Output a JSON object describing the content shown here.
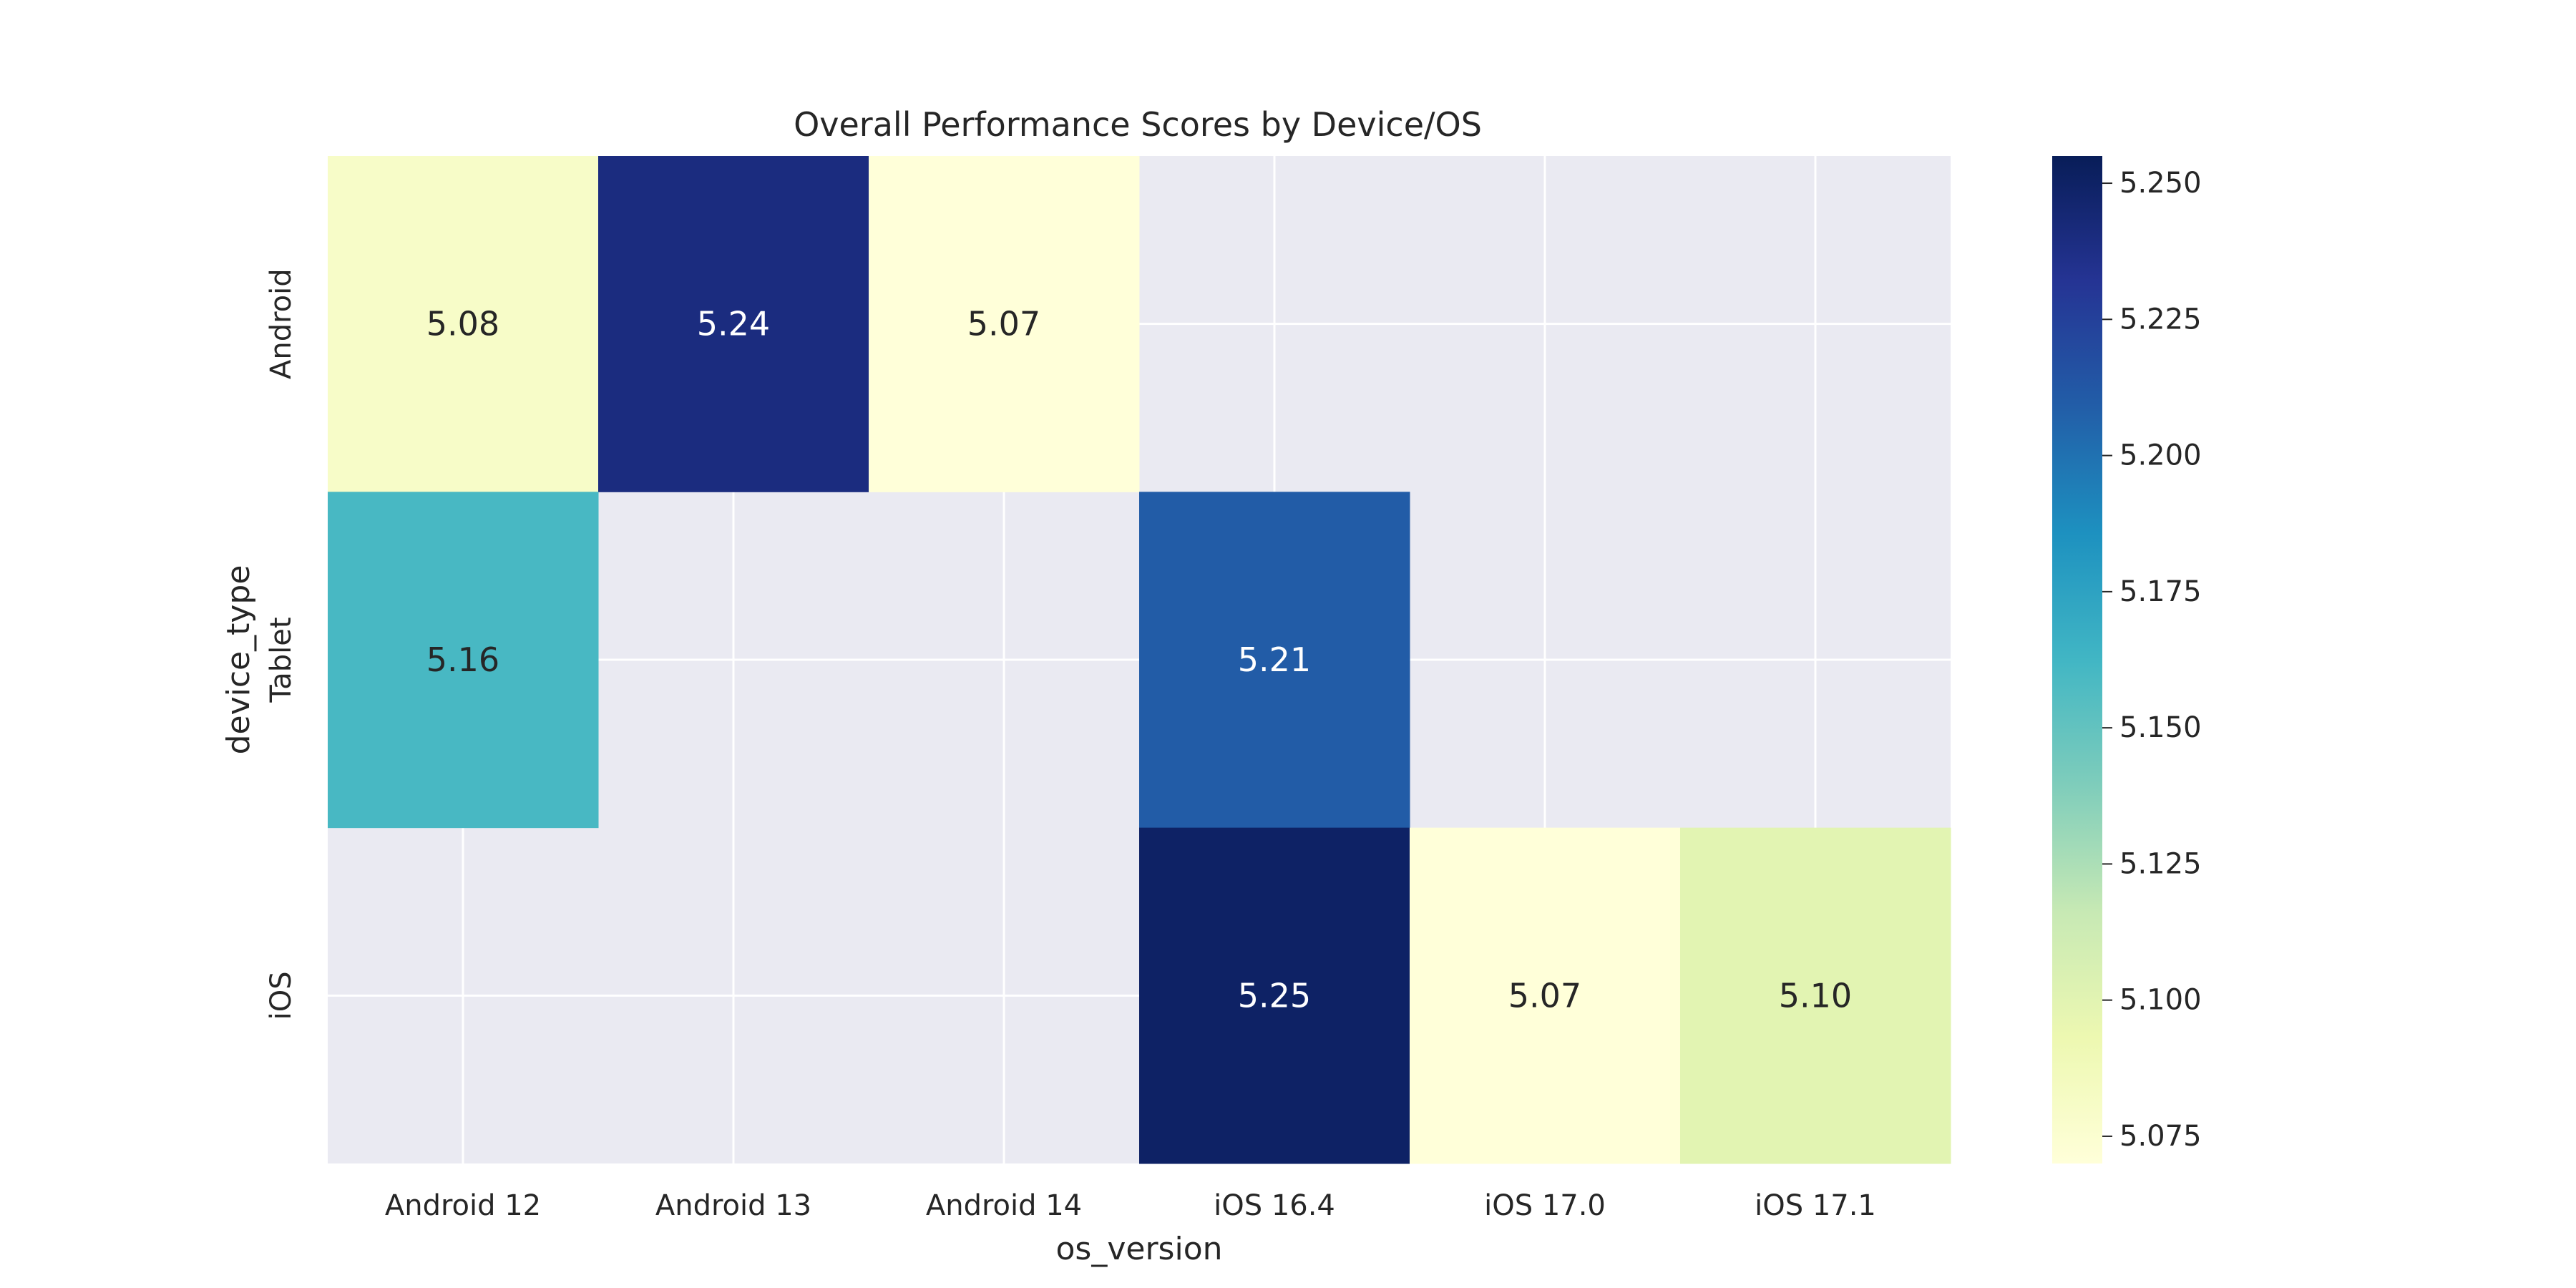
{
  "chart_data": {
    "type": "heatmap",
    "title": "Overall Performance Scores by Device/OS",
    "xlabel": "os_version",
    "ylabel": "device_type",
    "x_categories": [
      "Android 12",
      "Android 13",
      "Android 14",
      "iOS 16.4",
      "iOS 17.0",
      "iOS 17.1"
    ],
    "y_categories": [
      "Android",
      "Tablet",
      "iOS"
    ],
    "values": [
      [
        5.08,
        5.24,
        5.07,
        null,
        null,
        null
      ],
      [
        5.16,
        null,
        null,
        5.21,
        null,
        null
      ],
      [
        null,
        null,
        null,
        5.25,
        5.07,
        5.1
      ]
    ],
    "value_labels": [
      [
        "5.08",
        "5.24",
        "5.07",
        "",
        "",
        ""
      ],
      [
        "5.16",
        "",
        "",
        "5.21",
        "",
        ""
      ],
      [
        "",
        "",
        "",
        "5.25",
        "5.07",
        "5.10"
      ]
    ],
    "colorbar": {
      "colormap": "YlGnBu",
      "range": [
        5.07,
        5.255
      ],
      "ticks": [
        5.075,
        5.1,
        5.125,
        5.15,
        5.175,
        5.2,
        5.225,
        5.25
      ],
      "tick_labels": [
        "5.075",
        "5.100",
        "5.125",
        "5.150",
        "5.175",
        "5.200",
        "5.225",
        "5.250"
      ]
    },
    "grid": true,
    "background_color": "#eaeaf2"
  }
}
